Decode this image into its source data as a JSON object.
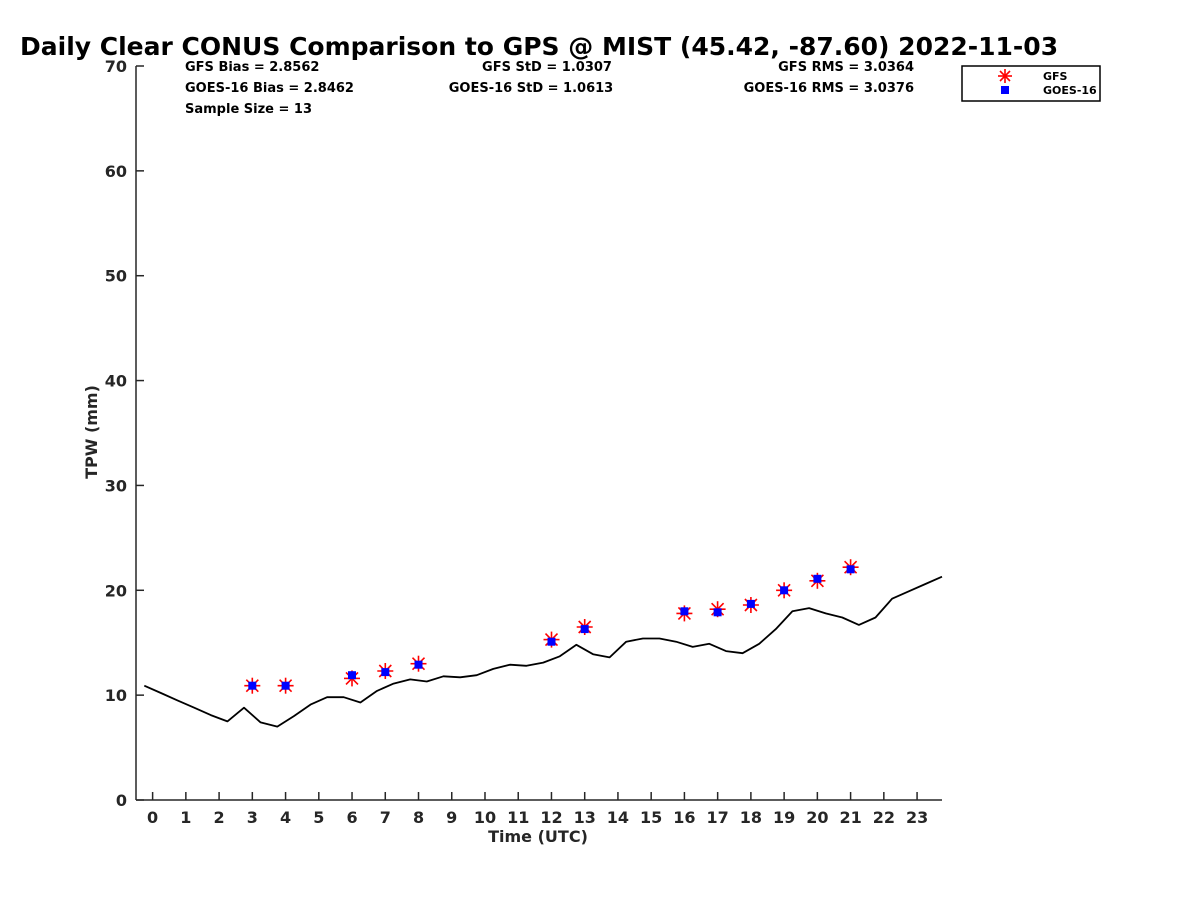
{
  "chart_data": {
    "type": "line",
    "title": "Daily Clear CONUS Comparison to GPS @ MIST (45.42, -87.60) 2022-11-03",
    "xlabel": "Time (UTC)",
    "ylabel": "TPW (mm)",
    "xlim": [
      -0.5,
      23.75
    ],
    "ylim": [
      0,
      70
    ],
    "xticks": [
      0,
      1,
      2,
      3,
      4,
      5,
      6,
      7,
      8,
      9,
      10,
      11,
      12,
      13,
      14,
      15,
      16,
      17,
      18,
      19,
      20,
      21,
      22,
      23
    ],
    "yticks": [
      0,
      10,
      20,
      30,
      40,
      50,
      60,
      70
    ],
    "grid": false,
    "legend_position": "top-right, outside plot",
    "stats": {
      "gfs_bias": "GFS Bias = 2.8562",
      "goes_bias": "GOES-16 Bias = 2.8462",
      "sample_size": "Sample Size = 13",
      "gfs_std": "GFS StD = 1.0307",
      "goes_std": "GOES-16 StD = 1.0613",
      "gfs_rms": "GFS RMS = 3.0364",
      "goes_rms": "GOES-16 RMS = 3.0376"
    },
    "series": [
      {
        "name": "GPS",
        "style": "line",
        "color": "#000000",
        "x": [
          -0.25,
          0.25,
          0.75,
          1.25,
          1.75,
          2.25,
          2.75,
          3.25,
          3.75,
          4.25,
          4.75,
          5.25,
          5.75,
          6.25,
          6.75,
          7.25,
          7.75,
          8.25,
          8.75,
          9.25,
          9.75,
          10.25,
          10.75,
          11.25,
          11.75,
          12.25,
          12.75,
          13.25,
          13.75,
          14.25,
          14.75,
          15.25,
          15.75,
          16.25,
          16.75,
          17.25,
          17.75,
          18.25,
          18.75,
          19.25,
          19.75,
          20.25,
          20.75,
          21.25,
          21.75,
          22.25,
          22.75,
          23.25,
          23.75
        ],
        "y": [
          10.9,
          10.2,
          9.5,
          8.8,
          8.1,
          7.5,
          8.8,
          7.4,
          7.0,
          8.0,
          9.1,
          9.8,
          9.8,
          9.3,
          10.4,
          11.1,
          11.5,
          11.3,
          11.8,
          11.7,
          11.9,
          12.5,
          12.9,
          12.8,
          13.1,
          13.7,
          14.8,
          13.9,
          13.6,
          15.1,
          15.4,
          15.4,
          15.1,
          14.6,
          14.9,
          14.2,
          14.0,
          14.9,
          16.3,
          18.0,
          18.3,
          17.8,
          17.4,
          16.7,
          17.4,
          19.2,
          19.9,
          20.6,
          21.3
        ]
      },
      {
        "name": "GFS",
        "style": "marker",
        "marker": "asterisk",
        "color": "#ff0000",
        "x": [
          3,
          4,
          6,
          7,
          8,
          12,
          13,
          16,
          17,
          18,
          19,
          20,
          21
        ],
        "y": [
          10.9,
          10.9,
          11.6,
          12.3,
          13.0,
          15.3,
          16.5,
          17.8,
          18.2,
          18.6,
          20.0,
          20.9,
          22.2
        ]
      },
      {
        "name": "GOES-16",
        "style": "marker",
        "marker": "square",
        "color": "#0000ff",
        "x": [
          3,
          4,
          6,
          7,
          8,
          12,
          13,
          16,
          17,
          18,
          19,
          20,
          21
        ],
        "y": [
          10.9,
          10.9,
          11.9,
          12.2,
          12.9,
          15.1,
          16.3,
          18.0,
          17.9,
          18.7,
          20.0,
          21.1,
          22.0
        ]
      }
    ]
  }
}
